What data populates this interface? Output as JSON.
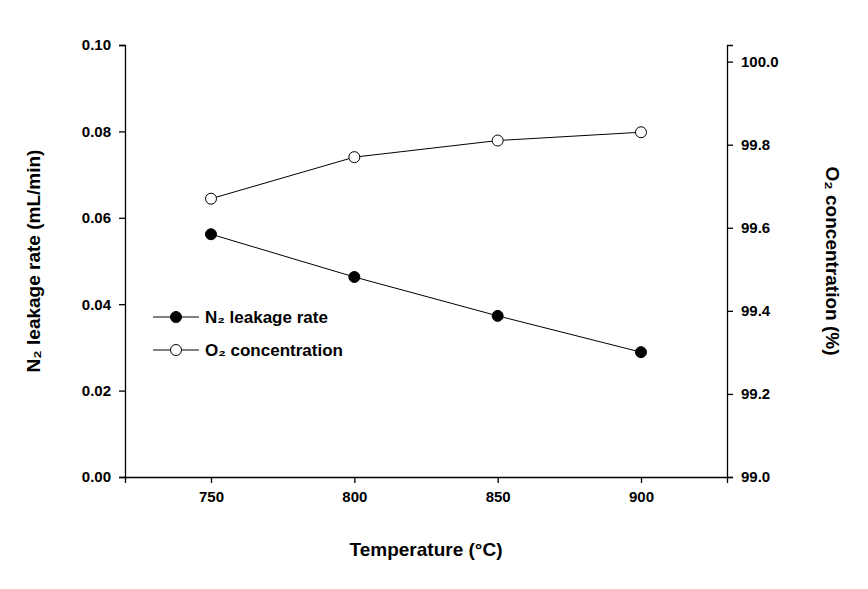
{
  "chart_data": {
    "type": "line",
    "x_label": "Temperature (°C)",
    "y_label": "N₂ leakage rate (mL/min)",
    "y2_label": "O₂ concentration (%)",
    "x": [
      750,
      800,
      850,
      900
    ],
    "xlim": [
      720,
      930
    ],
    "xticks": [
      750,
      800,
      850,
      900
    ],
    "ylim": [
      0,
      0.1
    ],
    "yticks": [
      {
        "value": 0,
        "label": "0.00"
      },
      {
        "value": 0.02,
        "label": "0.02"
      },
      {
        "value": 0.04,
        "label": "0.04"
      },
      {
        "value": 0.06,
        "label": "0.06"
      },
      {
        "value": 0.08,
        "label": "0.08"
      },
      {
        "value": 0.1,
        "label": "0.10"
      }
    ],
    "y2lim": [
      99.0,
      100.04
    ],
    "y2ticks": [
      {
        "value": 99.0,
        "label": "99.0"
      },
      {
        "value": 99.2,
        "label": "99.2"
      },
      {
        "value": 99.4,
        "label": "99.4"
      },
      {
        "value": 99.6,
        "label": "99.6"
      },
      {
        "value": 99.8,
        "label": "99.8"
      },
      {
        "value": 100.0,
        "label": "100.0"
      }
    ],
    "legend": "lower left",
    "grid": false,
    "series": [
      {
        "name": "N₂ leakage rate",
        "color": "#000000",
        "marker": "filled",
        "values": [
          0.0562,
          0.0463,
          0.0373,
          0.0289
        ]
      },
      {
        "name": "O₂ concentration",
        "color": "#000000",
        "marker": "open",
        "axis": "y2",
        "values": [
          99.67,
          99.77,
          99.81,
          99.83
        ]
      }
    ]
  }
}
